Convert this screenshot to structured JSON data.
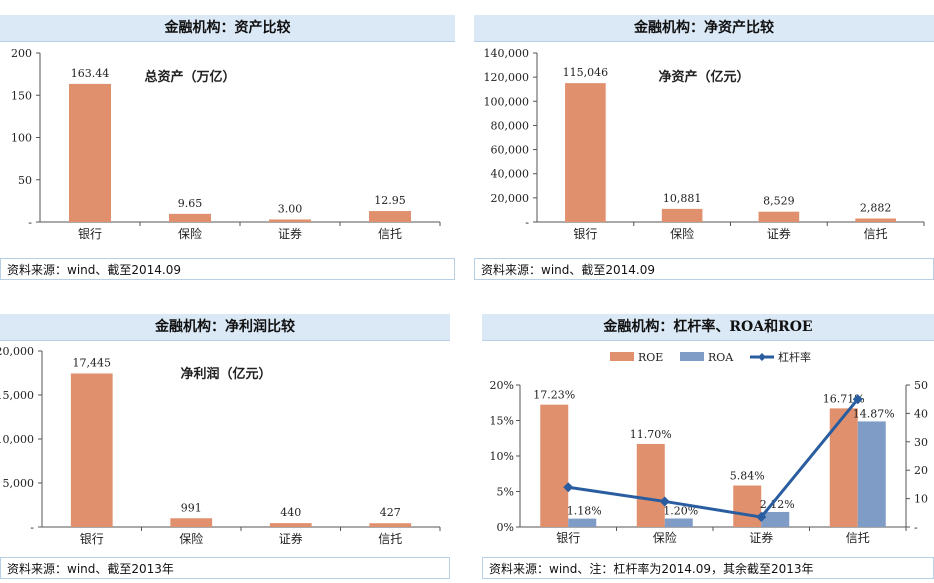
{
  "panels": [
    {
      "title": "金融机构：资产比较",
      "source": "资料来源：wind、截至2014.09",
      "chart_data": {
        "type": "bar",
        "title": "",
        "annotation": "总资产（万亿）",
        "categories": [
          "银行",
          "保险",
          "证券",
          "信托"
        ],
        "series": [
          {
            "values": [
              163.44,
              9.65,
              3.0,
              12.95
            ]
          }
        ],
        "data_labels": [
          "163.44",
          "9.65",
          "3.00",
          "12.95"
        ],
        "ylim": [
          0,
          200
        ],
        "yticks": [
          0,
          50,
          100,
          150,
          200
        ],
        "ytick_labels": [
          "-",
          "50",
          "100",
          "150",
          "200"
        ],
        "grid": false,
        "colors": [
          "#e0906d"
        ]
      }
    },
    {
      "title": "金融机构：净资产比较",
      "source": "资料来源：wind、截至2014.09",
      "chart_data": {
        "type": "bar",
        "title": "",
        "annotation": "净资产（亿元）",
        "categories": [
          "银行",
          "保险",
          "证券",
          "信托"
        ],
        "series": [
          {
            "values": [
              115046,
              10881,
              8529,
              2882
            ]
          }
        ],
        "data_labels": [
          "115,046",
          "10,881",
          "8,529",
          "2,882"
        ],
        "ylim": [
          0,
          140000
        ],
        "yticks": [
          0,
          20000,
          40000,
          60000,
          80000,
          100000,
          120000,
          140000
        ],
        "ytick_labels": [
          "-",
          "20,000",
          "40,000",
          "60,000",
          "80,000",
          "100,000",
          "120,000",
          "140,000"
        ],
        "grid": false,
        "colors": [
          "#e0906d"
        ]
      }
    },
    {
      "title": "金融机构：净利润比较",
      "source": "资料来源：wind、截至2013年",
      "chart_data": {
        "type": "bar",
        "title": "",
        "annotation": "净利润（亿元）",
        "categories": [
          "银行",
          "保险",
          "证券",
          "信托"
        ],
        "series": [
          {
            "values": [
              17445,
              991,
              440,
              427
            ]
          }
        ],
        "data_labels": [
          "17,445",
          "991",
          "440",
          "427"
        ],
        "ylim": [
          0,
          20000
        ],
        "yticks": [
          0,
          5000,
          10000,
          15000,
          20000
        ],
        "ytick_labels": [
          "-",
          "5,000",
          "10,000",
          "15,000",
          "20,000"
        ],
        "grid": false,
        "colors": [
          "#e0906d"
        ]
      }
    },
    {
      "title": "金融机构：杠杆率、ROA和ROE",
      "source": "资料来源：wind、注：杠杆率为2014.09，其余截至2013年",
      "chart_data": {
        "type": "bar",
        "title": "",
        "categories": [
          "银行",
          "保险",
          "证券",
          "信托"
        ],
        "series": [
          {
            "name": "ROE",
            "kind": "bar",
            "axis": "left",
            "values": [
              17.23,
              11.7,
              5.84,
              16.71
            ],
            "labels": [
              "17.23%",
              "11.70%",
              "5.84%",
              "16.71%"
            ],
            "color": "#e0906d"
          },
          {
            "name": "ROA",
            "kind": "bar",
            "axis": "left",
            "values": [
              1.18,
              1.2,
              2.12,
              14.87
            ],
            "labels": [
              "1.18%",
              "1.20%",
              "2.12%",
              "14.87%"
            ],
            "color": "#7f9cc7"
          },
          {
            "name": "杠杆率",
            "kind": "line",
            "axis": "right",
            "values": [
              14,
              9,
              3.5,
              45
            ],
            "color": "#2a5d9f"
          }
        ],
        "ylim": [
          0,
          20
        ],
        "yticks": [
          0,
          5,
          10,
          15,
          20
        ],
        "ytick_labels": [
          "0%",
          "5%",
          "10%",
          "15%",
          "20%"
        ],
        "y2lim": [
          0,
          50
        ],
        "y2ticks": [
          0,
          10,
          20,
          30,
          40,
          50
        ],
        "y2tick_labels": [
          "-",
          "10",
          "20",
          "30",
          "40",
          "50"
        ],
        "legend": "top",
        "grid": false
      }
    }
  ]
}
